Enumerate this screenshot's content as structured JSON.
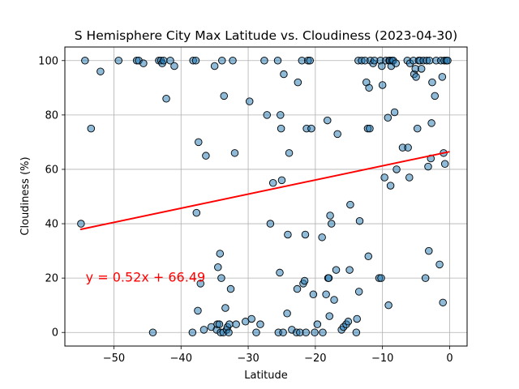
{
  "chart_data": {
    "type": "scatter",
    "title": "S Hemisphere City Max Latitude vs. Cloudiness (2023-04-30)",
    "xlabel": "Latitude",
    "ylabel": "Cloudiness (%)",
    "xlim": [
      -57.3,
      2.6
    ],
    "ylim": [
      -5,
      105
    ],
    "xticks": [
      -50,
      -40,
      -30,
      -20,
      -10,
      0
    ],
    "yticks": [
      0,
      20,
      40,
      60,
      80,
      100
    ],
    "xtick_labels": [
      "−50",
      "−40",
      "−30",
      "−20",
      "−10",
      "0"
    ],
    "ytick_labels": [
      "0",
      "20",
      "40",
      "60",
      "80",
      "100"
    ],
    "grid": true,
    "point_color": "#1f77b4",
    "regression": {
      "slope": 0.52,
      "intercept": 66.49,
      "x_range": [
        -55.0,
        0.0
      ],
      "color": "#ff0000",
      "equation_label": "y = 0.52x + 66.49",
      "label_at": [
        -54.2,
        20.5
      ]
    },
    "points": [
      [
        -54.9,
        40
      ],
      [
        -54.3,
        100
      ],
      [
        -53.4,
        75
      ],
      [
        -52,
        96
      ],
      [
        -49.3,
        100
      ],
      [
        -46.6,
        100
      ],
      [
        -46.3,
        100
      ],
      [
        -45.6,
        99
      ],
      [
        -44.2,
        0
      ],
      [
        -43.3,
        100
      ],
      [
        -43.0,
        100
      ],
      [
        -42.8,
        99
      ],
      [
        -42.6,
        100
      ],
      [
        -42.2,
        86
      ],
      [
        -41.6,
        100
      ],
      [
        -41.0,
        98
      ],
      [
        -38.3,
        0
      ],
      [
        -38.2,
        100
      ],
      [
        -37.8,
        100
      ],
      [
        -37.7,
        44
      ],
      [
        -37.5,
        8
      ],
      [
        -37.4,
        70
      ],
      [
        -37.1,
        18
      ],
      [
        -36.6,
        1
      ],
      [
        -36.3,
        65
      ],
      [
        -35.5,
        2
      ],
      [
        -35.0,
        98
      ],
      [
        -34.7,
        1
      ],
      [
        -34.6,
        3
      ],
      [
        -34.5,
        24
      ],
      [
        -34.3,
        3
      ],
      [
        -34.2,
        29
      ],
      [
        -34.1,
        0
      ],
      [
        -34.0,
        20
      ],
      [
        -33.9,
        100
      ],
      [
        -33.7,
        0
      ],
      [
        -33.6,
        87
      ],
      [
        -33.4,
        9
      ],
      [
        -33.2,
        1
      ],
      [
        -33.1,
        2
      ],
      [
        -32.9,
        0
      ],
      [
        -32.8,
        3
      ],
      [
        -32.6,
        16
      ],
      [
        -32.3,
        100
      ],
      [
        -32.0,
        66
      ],
      [
        -31.8,
        3
      ],
      [
        -30.4,
        4
      ],
      [
        -29.8,
        85
      ],
      [
        -29.5,
        5
      ],
      [
        -28.8,
        0
      ],
      [
        -28.2,
        3
      ],
      [
        -27.6,
        100
      ],
      [
        -27.2,
        80
      ],
      [
        -26.7,
        40
      ],
      [
        -26.3,
        55
      ],
      [
        -25.6,
        100
      ],
      [
        -25.5,
        0
      ],
      [
        -25.3,
        22
      ],
      [
        -25.2,
        80
      ],
      [
        -25.1,
        75
      ],
      [
        -25.0,
        56
      ],
      [
        -24.8,
        0
      ],
      [
        -24.7,
        95
      ],
      [
        -24.2,
        7
      ],
      [
        -24.1,
        36
      ],
      [
        -23.9,
        66
      ],
      [
        -23.5,
        1
      ],
      [
        -22.8,
        0
      ],
      [
        -22.7,
        16
      ],
      [
        -22.6,
        92
      ],
      [
        -22.3,
        0
      ],
      [
        -22.0,
        100
      ],
      [
        -21.8,
        18
      ],
      [
        -21.6,
        19
      ],
      [
        -21.5,
        36
      ],
      [
        -21.4,
        0
      ],
      [
        -21.3,
        75
      ],
      [
        -21.1,
        100
      ],
      [
        -20.8,
        100
      ],
      [
        -20.6,
        75
      ],
      [
        -20.3,
        14
      ],
      [
        -20.1,
        0
      ],
      [
        -19.7,
        3
      ],
      [
        -19.0,
        35
      ],
      [
        -18.9,
        0
      ],
      [
        -18.4,
        14
      ],
      [
        -18.2,
        78
      ],
      [
        -18.1,
        20
      ],
      [
        -18.0,
        20
      ],
      [
        -17.9,
        6
      ],
      [
        -17.8,
        43
      ],
      [
        -17.6,
        40
      ],
      [
        -17.2,
        12
      ],
      [
        -16.9,
        23
      ],
      [
        -16.7,
        73
      ],
      [
        -16.1,
        1
      ],
      [
        -15.8,
        2
      ],
      [
        -15.4,
        3
      ],
      [
        -15.1,
        4
      ],
      [
        -14.9,
        23
      ],
      [
        -14.8,
        47
      ],
      [
        -13.9,
        0
      ],
      [
        -13.8,
        5
      ],
      [
        -13.6,
        100
      ],
      [
        -13.5,
        15
      ],
      [
        -13.4,
        41
      ],
      [
        -13.1,
        100
      ],
      [
        -12.6,
        100
      ],
      [
        -12.4,
        92
      ],
      [
        -12.2,
        75
      ],
      [
        -12.1,
        28
      ],
      [
        -12.0,
        90
      ],
      [
        -11.9,
        75
      ],
      [
        -11.8,
        100
      ],
      [
        -11.4,
        99
      ],
      [
        -11.2,
        100
      ],
      [
        -10.5,
        20
      ],
      [
        -10.3,
        100
      ],
      [
        -10.2,
        20
      ],
      [
        -10.1,
        98
      ],
      [
        -10.0,
        91
      ],
      [
        -9.7,
        57
      ],
      [
        -9.5,
        100
      ],
      [
        -9.2,
        79
      ],
      [
        -9.1,
        10
      ],
      [
        -9.0,
        100
      ],
      [
        -8.9,
        100
      ],
      [
        -8.8,
        54
      ],
      [
        -8.7,
        98
      ],
      [
        -8.6,
        100
      ],
      [
        -8.4,
        100
      ],
      [
        -8.2,
        81
      ],
      [
        -8.0,
        99
      ],
      [
        -7.9,
        60
      ],
      [
        -7.0,
        68
      ],
      [
        -6.3,
        100
      ],
      [
        -6.2,
        68
      ],
      [
        -6.0,
        57
      ],
      [
        -5.9,
        99
      ],
      [
        -5.4,
        100
      ],
      [
        -5.3,
        95
      ],
      [
        -5.1,
        97
      ],
      [
        -5.0,
        94
      ],
      [
        -4.8,
        75
      ],
      [
        -4.6,
        100
      ],
      [
        -4.4,
        100
      ],
      [
        -4.2,
        97
      ],
      [
        -3.9,
        100
      ],
      [
        -3.6,
        20
      ],
      [
        -3.4,
        100
      ],
      [
        -3.2,
        61
      ],
      [
        -3.1,
        30
      ],
      [
        -3.0,
        100
      ],
      [
        -2.8,
        64
      ],
      [
        -2.7,
        77
      ],
      [
        -2.6,
        92
      ],
      [
        -2.2,
        87
      ],
      [
        -2.0,
        100
      ],
      [
        -1.5,
        25
      ],
      [
        -1.3,
        100
      ],
      [
        -1.1,
        94
      ],
      [
        -1.0,
        11
      ],
      [
        -0.9,
        66
      ],
      [
        -0.8,
        100
      ],
      [
        -0.7,
        62
      ],
      [
        -0.5,
        100
      ],
      [
        -0.3,
        100
      ]
    ]
  }
}
